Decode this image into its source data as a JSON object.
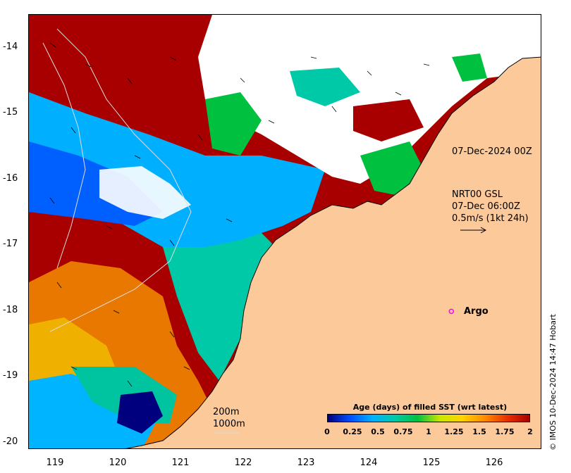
{
  "map": {
    "y_ticks": [
      "-14",
      "-15",
      "-16",
      "-17",
      "-18",
      "-19",
      "-20"
    ],
    "x_ticks": [
      "119",
      "120",
      "121",
      "122",
      "123",
      "124",
      "125",
      "126"
    ],
    "lon_range": [
      118.55,
      126.75
    ],
    "lat_range": [
      -20.1,
      -13.5
    ],
    "colors": {
      "land": "#fbc99a",
      "cloud": "#ffffff",
      "coast": "#000000"
    }
  },
  "annotations": {
    "timestamp": "07-Dec-2024 00Z",
    "current_source": "NRT00 GSL",
    "current_time": "07-Dec 06:00Z",
    "scale": "0.5m/s (1kt 24h)",
    "argo": "Argo",
    "depth_200": "200m",
    "depth_1000": "1000m"
  },
  "credit": "© IMOS 10-Dec-2024 14:47 Hobart",
  "legend": {
    "title": "Age (days) of filled SST (wrt latest)",
    "ticks": [
      "0",
      "0.25",
      "0.5",
      "0.75",
      "1",
      "1.25",
      "1.5",
      "1.75",
      "2"
    ],
    "range": [
      0,
      2
    ],
    "colors": [
      "#00007f",
      "#0050ff",
      "#00b0ff",
      "#00c9a8",
      "#00c040",
      "#c8e800",
      "#ffd400",
      "#ff8c00",
      "#e83000",
      "#a80000"
    ]
  },
  "argo_position": {
    "lon": 125.3,
    "lat": -18.0
  }
}
